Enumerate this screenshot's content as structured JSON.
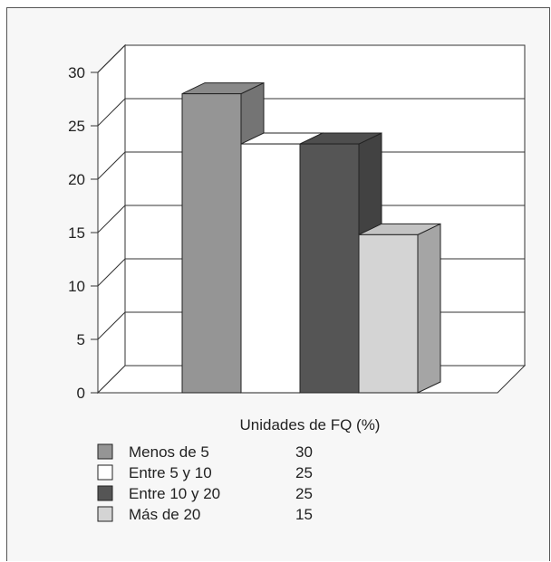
{
  "chart_data": {
    "type": "bar",
    "title": "",
    "xlabel": "Unidades de FQ (%)",
    "ylabel": "",
    "ylim": [
      0,
      30
    ],
    "yticks": [
      "0",
      "5",
      "10",
      "15",
      "20",
      "25",
      "30"
    ],
    "grid": true,
    "three_d": true,
    "legend_position": "bottom-left",
    "series": [
      {
        "name": "Menos de 5",
        "legend_value": "30",
        "value": 28,
        "color": "#959595"
      },
      {
        "name": "Entre 5 y 10",
        "legend_value": "25",
        "value": 23.3,
        "color": "#ffffff"
      },
      {
        "name": "Entre 10 y 20",
        "legend_value": "25",
        "value": 23.3,
        "color": "#555555"
      },
      {
        "name": "Más de 20",
        "legend_value": "15",
        "value": 14.8,
        "color": "#d4d4d4"
      }
    ]
  }
}
